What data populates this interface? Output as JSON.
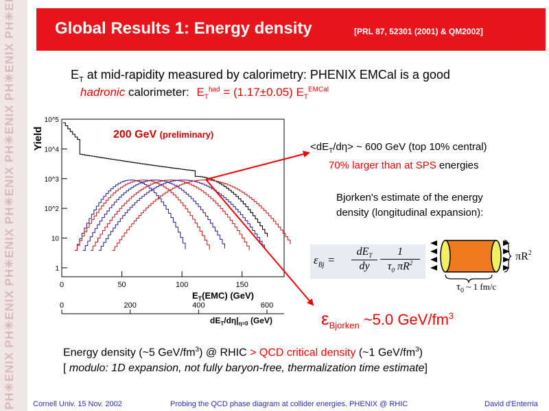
{
  "sidebar": {
    "watermark": "PH✳ENIX PH✳ENIX PH✳ENIX PH✳ENIX PH✳ENIX PH✳ENIX PH✳ENIX"
  },
  "header": {
    "title": "Global Results 1: Energy density",
    "reference": "[PRL 87, 52301 (2001) & QM2002]"
  },
  "intro": {
    "line1_prefix": "E",
    "line1_sub": "T",
    "line1_text": " at mid-rapidity measured by calorimetry: PHENIX EMCal is a good",
    "line2_italic": "hadronic",
    "line2_text": " calorimeter:",
    "line2_formula_et": "E",
    "line2_formula_sub": "T",
    "line2_formula_sup": "had",
    "line2_formula_mid": " = (1.17±0.05) E",
    "line2_formula_sub2": "T",
    "line2_formula_sup2": "EMCal"
  },
  "chart_data": {
    "type": "line",
    "title": "200 GeV (preliminary)",
    "ylabel": "Yield",
    "xlabel": "E_T(EMC) (GeV)",
    "xlabel2": "dE_T/dη|η=0 (GeV)",
    "y_scale": "log",
    "ylim": [
      0.5,
      100000
    ],
    "xlim": [
      0,
      185
    ],
    "x_ticks": [
      "0",
      "50",
      "100",
      "150"
    ],
    "x2_ticks": [
      "0",
      "200",
      "400",
      "600"
    ],
    "y_ticks": [
      "10^5",
      "10^4",
      "10^3",
      "10^2",
      "10",
      "1"
    ],
    "grid": false,
    "series": [
      {
        "color": "#000000",
        "centroid": null,
        "width": null
      },
      {
        "color": "#2b2b9a",
        "centroid": 57,
        "width": 14
      },
      {
        "color": "#cc2222",
        "centroid": 67,
        "width": 17
      },
      {
        "color": "#2b2b9a",
        "centroid": 77,
        "width": 18
      },
      {
        "color": "#cc2222",
        "centroid": 90,
        "width": 20
      },
      {
        "color": "#2b2b9a",
        "centroid": 100,
        "width": 21
      },
      {
        "color": "#cc2222",
        "centroid": 118,
        "width": 23
      }
    ]
  },
  "right": {
    "et_bracket_open": "<dE",
    "et_sub": "T",
    "et_rest": "/dη> ~ 600 GeV (top 10% central)",
    "sps_red": "70% larger than at SPS",
    "sps_black": " energies",
    "bjorken1": "Bjorken's estimate of the energy",
    "bjorken2": "density (longitudinal expansion):"
  },
  "formula": {
    "lhs": "ε",
    "lhs_sub": "Bj",
    "num": "dE",
    "num_sub": "T",
    "den": "dy",
    "frac2_num": "1",
    "frac2_den": "τ",
    "frac2_den_sub": "0",
    "frac2_den_rest": " πR",
    "frac2_den_sup": "2"
  },
  "cylinder": {
    "area": "πR",
    "area_sup": "2",
    "tau": "τ",
    "tau_sub": "0",
    "tau_val": "~ 1 fm/c"
  },
  "result": {
    "epsilon": "ε",
    "sub": "Bjorken",
    "value": " ~5.0 GeV/fm",
    "sup": "3"
  },
  "summary": {
    "line1_a": "Energy density (~5 GeV/fm",
    "line1_sup": "3",
    "line1_b": ") @ RHIC ",
    "line1_red": "> QCD critical density",
    "line1_c": " (~1 GeV/fm",
    "line1_sup2": "3",
    "line1_d": ")",
    "line2_open": "[ ",
    "line2_italic": "modulo: 1D expansion, not fully baryon-free, thermalization time estimate",
    "line2_close": "]"
  },
  "footer": {
    "left": "Cornell Univ. 15 Nov.  2002",
    "center": "Probing the QCD phase diagram at collider energies. PHENIX @ RHIC",
    "right": "David d'Enterria"
  },
  "colors": {
    "accent": "#e8141b",
    "footer_text": "#2a30a8",
    "arrow": "#e00000"
  }
}
